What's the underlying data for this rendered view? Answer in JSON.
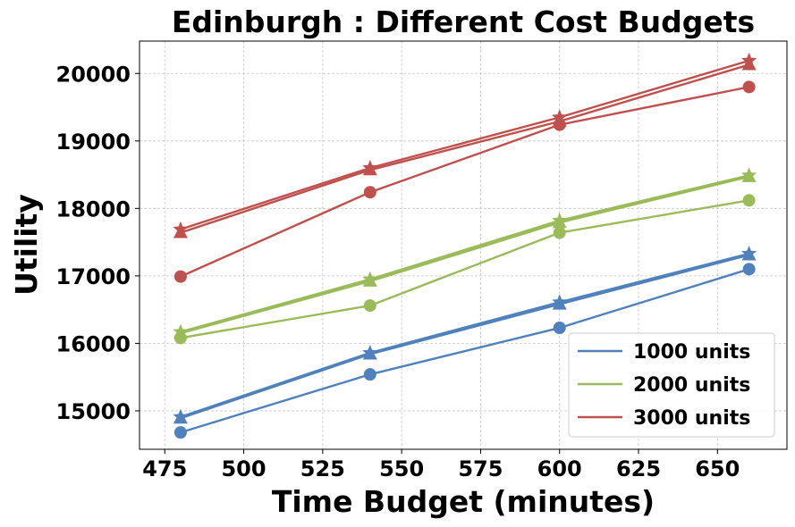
{
  "chart_data": {
    "type": "line",
    "title": "Edinburgh : Different Cost Budgets",
    "xlabel": "Time Budget (minutes)",
    "ylabel": "Utility",
    "x": [
      480,
      540,
      600,
      660
    ],
    "xlim": [
      467,
      672
    ],
    "ylim": [
      14430,
      20480
    ],
    "xticks": [
      475,
      500,
      525,
      550,
      575,
      600,
      625,
      650
    ],
    "yticks": [
      15000,
      16000,
      17000,
      18000,
      19000,
      20000
    ],
    "grid": true,
    "legend": {
      "position": "lower-right",
      "entries": [
        "1000 units",
        "2000 units",
        "3000 units"
      ]
    },
    "series": [
      {
        "group": "1000 units",
        "color": "#4f81bd",
        "marker": "circle",
        "values": [
          14680,
          15540,
          16230,
          17100
        ]
      },
      {
        "group": "1000 units",
        "color": "#4f81bd",
        "marker": "triangle",
        "values": [
          14890,
          15840,
          16580,
          17310
        ]
      },
      {
        "group": "1000 units",
        "color": "#4f81bd",
        "marker": "star",
        "values": [
          14910,
          15860,
          16610,
          17330
        ]
      },
      {
        "group": "2000 units",
        "color": "#9bbb59",
        "marker": "circle",
        "values": [
          16080,
          16560,
          17640,
          18120
        ]
      },
      {
        "group": "2000 units",
        "color": "#9bbb59",
        "marker": "triangle",
        "values": [
          16150,
          16920,
          17790,
          18470
        ]
      },
      {
        "group": "2000 units",
        "color": "#9bbb59",
        "marker": "star",
        "values": [
          16170,
          16950,
          17820,
          18490
        ]
      },
      {
        "group": "3000 units",
        "color": "#c0504d",
        "marker": "circle",
        "values": [
          16990,
          18240,
          19240,
          19800
        ]
      },
      {
        "group": "3000 units",
        "color": "#c0504d",
        "marker": "triangle",
        "values": [
          17640,
          18570,
          19290,
          20130
        ]
      },
      {
        "group": "3000 units",
        "color": "#c0504d",
        "marker": "star",
        "values": [
          17690,
          18600,
          19350,
          20190
        ]
      }
    ],
    "legend_colors": [
      "#4f81bd",
      "#9bbb59",
      "#c0504d"
    ]
  }
}
